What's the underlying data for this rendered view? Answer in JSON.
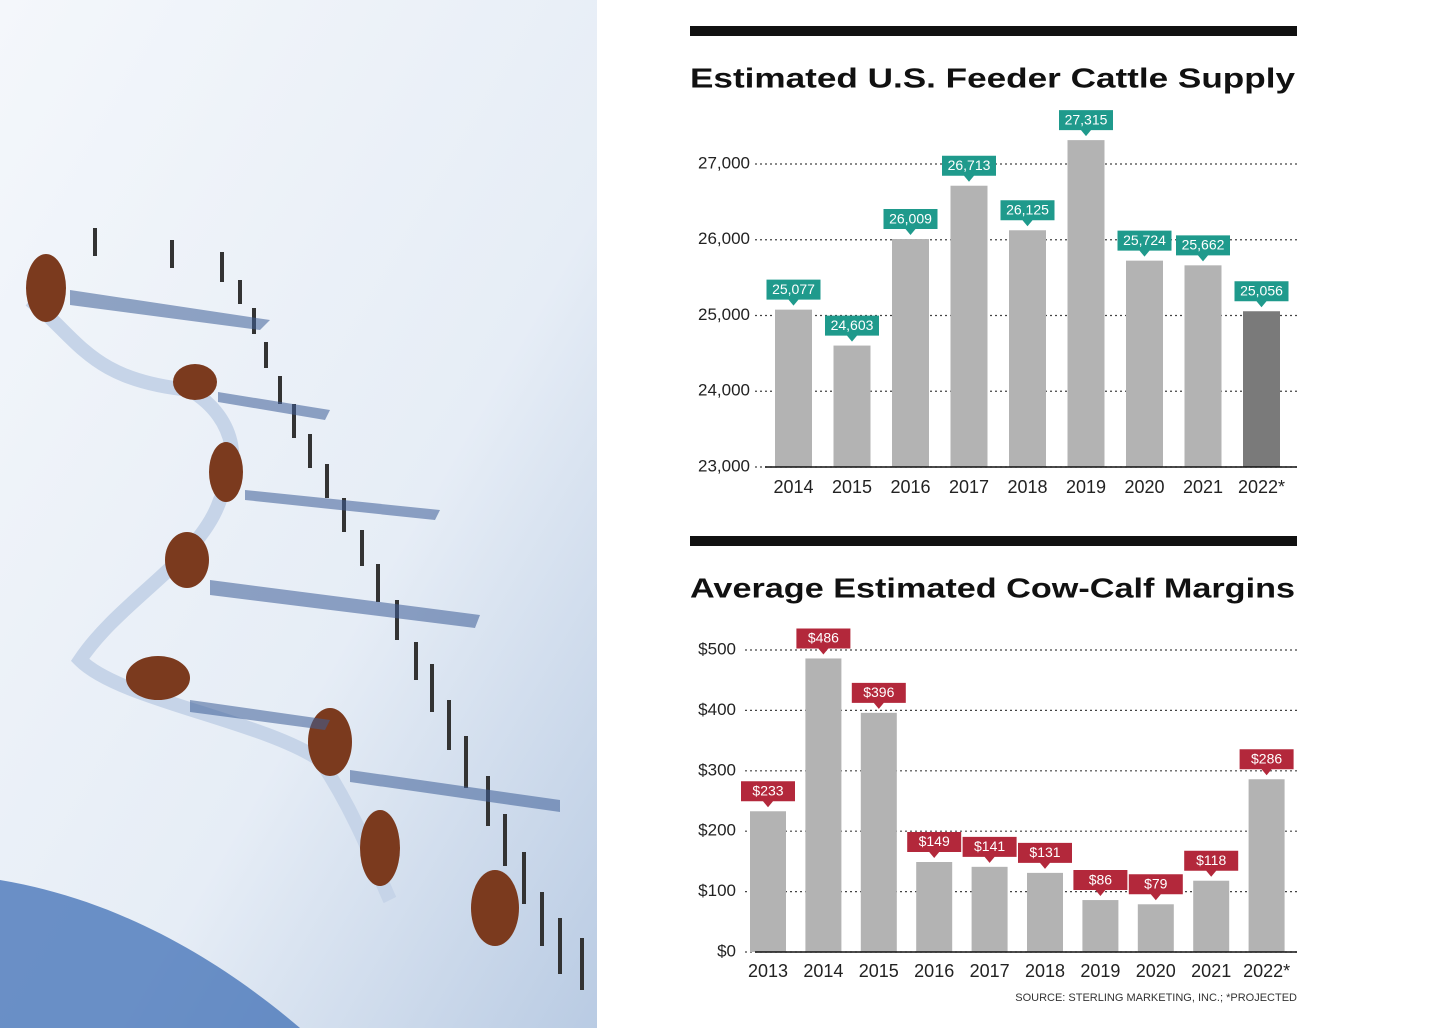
{
  "chart_data": [
    {
      "type": "bar",
      "title": "Estimated U.S. Feeder Cattle Supply",
      "categories": [
        "2014",
        "2015",
        "2016",
        "2017",
        "2018",
        "2019",
        "2020",
        "2021",
        "2022*"
      ],
      "values": [
        25077,
        24603,
        26009,
        26713,
        26125,
        27315,
        25724,
        25662,
        25056
      ],
      "value_labels": [
        "25,077",
        "24,603",
        "26,009",
        "26,713",
        "26,125",
        "27,315",
        "25,724",
        "25,662",
        "25,056"
      ],
      "colors": [
        "#b3b3b3",
        "#b3b3b3",
        "#b3b3b3",
        "#b3b3b3",
        "#b3b3b3",
        "#b3b3b3",
        "#b3b3b3",
        "#b3b3b3",
        "#7a7a7a"
      ],
      "label_color": "#1f9a8c",
      "ylim": [
        23000,
        27500
      ],
      "yticks": [
        {
          "value": 23000,
          "label": "23,000"
        },
        {
          "value": 24000,
          "label": "24,000"
        },
        {
          "value": 25000,
          "label": "25,000"
        },
        {
          "value": 26000,
          "label": "26,000"
        },
        {
          "value": 27000,
          "label": "27,000"
        }
      ],
      "grid": true
    },
    {
      "type": "bar",
      "title": "Average Estimated Cow-Calf Margins",
      "categories": [
        "2013",
        "2014",
        "2015",
        "2016",
        "2017",
        "2018",
        "2019",
        "2020",
        "2021",
        "2022*"
      ],
      "values": [
        233,
        486,
        396,
        149,
        141,
        131,
        86,
        79,
        118,
        286
      ],
      "value_labels": [
        "$233",
        "$486",
        "$396",
        "$149",
        "$141",
        "$131",
        "$86",
        "$79",
        "$118",
        "$286"
      ],
      "color": "#b3b3b3",
      "label_color": "#b3283b",
      "ylim": [
        0,
        550
      ],
      "yticks": [
        {
          "value": 0,
          "label": "$0"
        },
        {
          "value": 100,
          "label": "$100"
        },
        {
          "value": 200,
          "label": "$200"
        },
        {
          "value": 300,
          "label": "$300"
        },
        {
          "value": 400,
          "label": "$400"
        },
        {
          "value": 500,
          "label": "$500"
        }
      ],
      "grid": true,
      "note": "SOURCE: STERLING MARKETING, INC.; *PROJECTED"
    }
  ]
}
